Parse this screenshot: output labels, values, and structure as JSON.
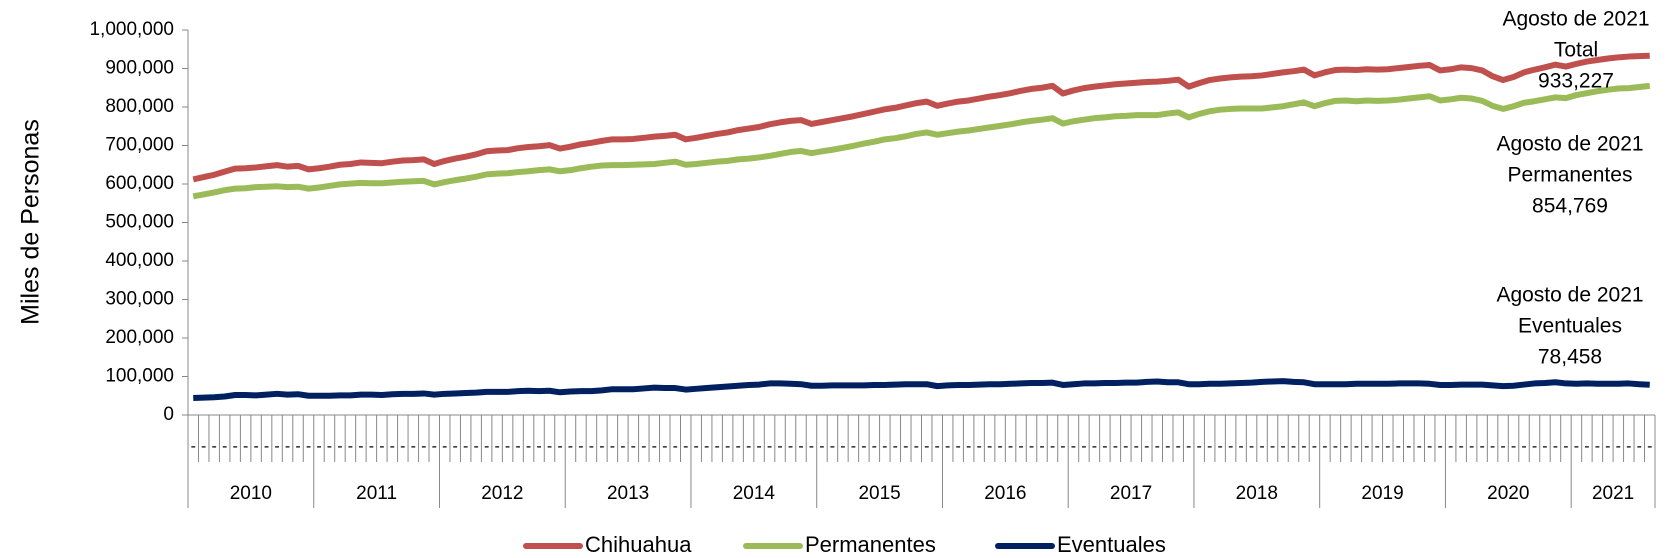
{
  "chart_data": {
    "type": "line",
    "y_axis_label": "Miles de Personas",
    "categories": [
      "-",
      "-",
      "-",
      "-",
      "-",
      "-",
      "-",
      "-",
      "-",
      "-",
      "-",
      "-",
      "-",
      "-",
      "-",
      "-",
      "-",
      "-",
      "-",
      "-",
      "-",
      "-",
      "-",
      "-",
      "-",
      "-",
      "-",
      "-",
      "-",
      "-",
      "-",
      "-",
      "-",
      "-",
      "-",
      "-",
      "-",
      "-",
      "-",
      "-",
      "-",
      "-",
      "-",
      "-",
      "-",
      "-",
      "-",
      "-",
      "-",
      "-",
      "-",
      "-",
      "-",
      "-",
      "-",
      "-",
      "-",
      "-",
      "-",
      "-",
      "-",
      "-",
      "-",
      "-",
      "-",
      "-",
      "-",
      "-",
      "-",
      "-",
      "-",
      "-",
      "-",
      "-",
      "-",
      "-",
      "-",
      "-",
      "-",
      "-",
      "-",
      "-",
      "-",
      "-",
      "-",
      "-",
      "-",
      "-",
      "-",
      "-",
      "-",
      "-",
      "-",
      "-",
      "-",
      "-",
      "-",
      "-",
      "-",
      "-",
      "-",
      "-",
      "-",
      "-",
      "-",
      "-",
      "-",
      "-",
      "-",
      "-",
      "-",
      "-",
      "-",
      "-",
      "-",
      "-",
      "-",
      "-",
      "-",
      "-",
      "-",
      "-",
      "-",
      "-",
      "-",
      "-",
      "-",
      "-",
      "-",
      "-",
      "-",
      "-",
      "-",
      "-",
      "-",
      "-",
      "-",
      "-",
      "-",
      "-"
    ],
    "x_groups": [
      "2010",
      "2011",
      "2012",
      "2013",
      "2014",
      "2015",
      "2016",
      "2017",
      "2018",
      "2019",
      "2020",
      "2021"
    ],
    "series": [
      {
        "name": "Chihuahua",
        "color": "#c0504d",
        "values": [
          612000,
          618000,
          624000,
          632000,
          640000,
          641000,
          643000,
          646000,
          649000,
          645000,
          647000,
          638000,
          641000,
          645000,
          650000,
          652000,
          656000,
          655000,
          654000,
          658000,
          661000,
          662000,
          664000,
          652000,
          660000,
          666000,
          671000,
          677000,
          685000,
          687000,
          688000,
          693000,
          696000,
          698000,
          701000,
          692000,
          697000,
          703000,
          707000,
          712000,
          716000,
          716000,
          717000,
          720000,
          723000,
          725000,
          728000,
          716000,
          720000,
          725000,
          730000,
          734000,
          740000,
          744000,
          748000,
          755000,
          760000,
          764000,
          766000,
          756000,
          761000,
          766000,
          771000,
          776000,
          782000,
          788000,
          794000,
          798000,
          804000,
          810000,
          814000,
          803000,
          809000,
          814000,
          817000,
          822000,
          827000,
          831000,
          836000,
          842000,
          847000,
          850000,
          855000,
          835000,
          843000,
          849000,
          853000,
          856000,
          859000,
          861000,
          863000,
          865000,
          866000,
          868000,
          871000,
          853000,
          862000,
          870000,
          874000,
          877000,
          879000,
          880000,
          882000,
          886000,
          890000,
          893000,
          897000,
          882000,
          890000,
          896000,
          897000,
          896000,
          898000,
          897000,
          898000,
          901000,
          904000,
          907000,
          909000,
          895000,
          898000,
          903000,
          901000,
          895000,
          880000,
          870000,
          878000,
          890000,
          897000,
          903000,
          910000,
          905000,
          912000,
          918000,
          922000,
          926000,
          929000,
          931000,
          932000,
          933227
        ]
      },
      {
        "name": "Permanentes",
        "color": "#9bbb59",
        "values": [
          568000,
          573000,
          578000,
          584000,
          588000,
          589000,
          592000,
          593000,
          594000,
          592000,
          593000,
          588000,
          591000,
          595000,
          599000,
          601000,
          603000,
          602000,
          602000,
          604000,
          606000,
          607000,
          608000,
          599000,
          605000,
          610000,
          614000,
          619000,
          625000,
          627000,
          628000,
          631000,
          633000,
          636000,
          638000,
          633000,
          636000,
          641000,
          645000,
          648000,
          649000,
          649000,
          650000,
          651000,
          652000,
          655000,
          658000,
          650000,
          652000,
          655000,
          658000,
          660000,
          664000,
          666000,
          669000,
          673000,
          678000,
          683000,
          686000,
          680000,
          685000,
          689000,
          694000,
          699000,
          705000,
          710000,
          716000,
          719000,
          724000,
          730000,
          734000,
          728000,
          732000,
          736000,
          739000,
          743000,
          747000,
          751000,
          755000,
          760000,
          764000,
          767000,
          771000,
          757000,
          763000,
          767000,
          771000,
          773000,
          776000,
          777000,
          779000,
          779000,
          779000,
          783000,
          786000,
          773000,
          782000,
          789000,
          793000,
          795000,
          796000,
          796000,
          796000,
          799000,
          802000,
          807000,
          812000,
          802000,
          810000,
          816000,
          817000,
          815000,
          817000,
          816000,
          817000,
          819000,
          822000,
          825000,
          828000,
          817000,
          820000,
          824000,
          822000,
          816000,
          803000,
          795000,
          802000,
          811000,
          815000,
          820000,
          825000,
          823000,
          831000,
          836000,
          841000,
          845000,
          848000,
          849000,
          852000,
          854769
        ]
      },
      {
        "name": "Eventuales",
        "color": "#002060",
        "values": [
          44000,
          45000,
          46000,
          48000,
          52000,
          52000,
          51000,
          53000,
          55000,
          53000,
          54000,
          50000,
          50000,
          50000,
          51000,
          51000,
          53000,
          53000,
          52000,
          54000,
          55000,
          55000,
          56000,
          53000,
          55000,
          56000,
          57000,
          58000,
          60000,
          60000,
          60000,
          62000,
          63000,
          62000,
          63000,
          59000,
          61000,
          62000,
          62000,
          64000,
          67000,
          67000,
          67000,
          69000,
          71000,
          70000,
          70000,
          66000,
          68000,
          70000,
          72000,
          74000,
          76000,
          78000,
          79000,
          82000,
          82000,
          81000,
          80000,
          76000,
          76000,
          77000,
          77000,
          77000,
          77000,
          78000,
          78000,
          79000,
          80000,
          80000,
          80000,
          75000,
          77000,
          78000,
          78000,
          79000,
          80000,
          80000,
          81000,
          82000,
          83000,
          83000,
          84000,
          78000,
          80000,
          82000,
          82000,
          83000,
          83000,
          84000,
          84000,
          86000,
          87000,
          85000,
          85000,
          80000,
          80000,
          81000,
          81000,
          82000,
          83000,
          84000,
          86000,
          87000,
          88000,
          86000,
          85000,
          80000,
          80000,
          80000,
          80000,
          81000,
          81000,
          81000,
          81000,
          82000,
          82000,
          82000,
          81000,
          78000,
          78000,
          79000,
          79000,
          79000,
          77000,
          75000,
          76000,
          79000,
          82000,
          83000,
          85000,
          82000,
          81000,
          82000,
          81000,
          81000,
          81000,
          82000,
          80000,
          78458
        ]
      }
    ],
    "ylim": [
      0,
      1000000
    ],
    "yticks": [
      0,
      {
        "value": 100000,
        "label": "100,000"
      },
      {
        "value": 200000,
        "label": "200,000"
      },
      {
        "value": 300000,
        "label": "300,000"
      },
      {
        "value": 400000,
        "label": "400,000"
      },
      {
        "value": 500000,
        "label": "500,000"
      },
      {
        "value": 600000,
        "label": "600,000"
      },
      {
        "value": 700000,
        "label": "700,000"
      },
      {
        "value": 800000,
        "label": "800,000"
      },
      {
        "value": 900000,
        "label": "900,000"
      },
      {
        "value": 1000000,
        "label": "1,000,000"
      }
    ],
    "annotations": [
      {
        "lines": [
          "Agosto de 2021",
          "Total",
          "933,227"
        ]
      },
      {
        "lines": [
          "Agosto de 2021",
          "Permanentes",
          "854,769"
        ]
      },
      {
        "lines": [
          "Agosto de 2021",
          "Eventuales",
          "78,458"
        ]
      }
    ],
    "legend": "bottom"
  }
}
